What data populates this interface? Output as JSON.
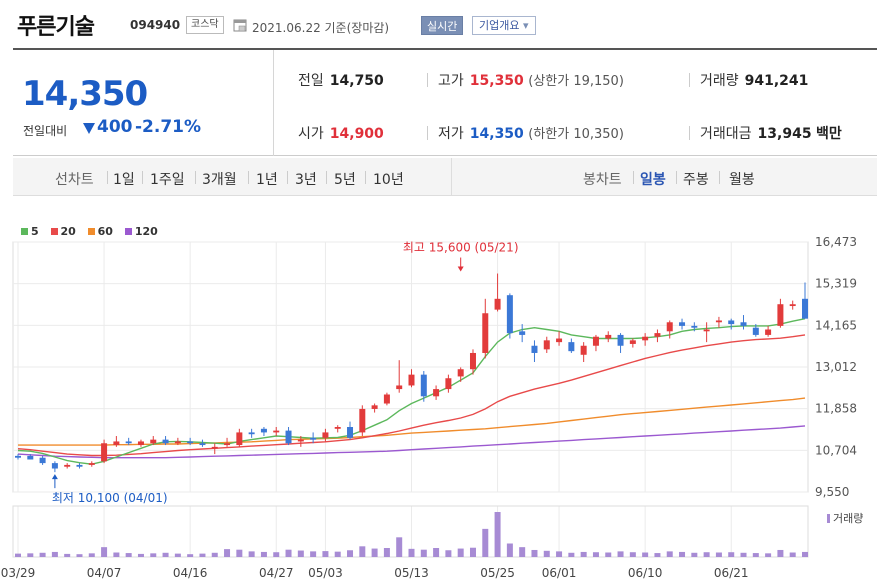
{
  "header": {
    "name": "푸른기술",
    "code": "094940",
    "market": "코스닥",
    "date_text": "2021.06.22 기준(장마감)",
    "realtime_label": "실시간",
    "overview_label": "기업개요",
    "overview_arrow": "▾"
  },
  "summary": {
    "current_price": "14,350",
    "prev_diff_label": "전일대비",
    "diff_value": "400",
    "diff_pct": "-2.71%",
    "prev_label": "전일",
    "prev_value": "14,750",
    "high_label": "고가",
    "high_value": "15,350",
    "upper_limit": "(상한가 19,150)",
    "volume_label": "거래량",
    "volume_value": "941,241",
    "open_label": "시가",
    "open_value": "14,900",
    "low_label": "저가",
    "low_value": "14,350",
    "lower_limit": "(하한가 10,350)",
    "amount_label": "거래대금",
    "amount_value": "13,945",
    "amount_unit": "백만"
  },
  "period_bar": {
    "line_label": "선차트",
    "line_periods": [
      "1일",
      "1주일",
      "3개월",
      "1년",
      "3년",
      "5년",
      "10년"
    ],
    "candle_label": "봉차트",
    "candle_periods": [
      "일봉",
      "주봉",
      "월봉"
    ],
    "active_candle": "일봉"
  },
  "legend": [
    {
      "label": "5",
      "color": "#5cb85c"
    },
    {
      "label": "20",
      "color": "#e84a4a"
    },
    {
      "label": "60",
      "color": "#f08c2c"
    },
    {
      "label": "120",
      "color": "#9b59d0"
    }
  ],
  "colors": {
    "up": "#e0303a",
    "down": "#1c5cc4",
    "candle_up": "#e23b3b",
    "candle_down": "#3b78d6",
    "volume": "#a78bd4"
  },
  "chart_data": {
    "type": "candlestick",
    "y_ticks": [
      "16,473",
      "15,319",
      "14,165",
      "13,012",
      "11,858",
      "10,704",
      "9,550"
    ],
    "ylim": [
      9550,
      16473
    ],
    "x_ticks": [
      {
        "label": "03/29",
        "index": 0
      },
      {
        "label": "04/07",
        "index": 7
      },
      {
        "label": "04/16",
        "index": 14
      },
      {
        "label": "04/27",
        "index": 21
      },
      {
        "label": "05/03",
        "index": 25
      },
      {
        "label": "05/13",
        "index": 32
      },
      {
        "label": "05/25",
        "index": 39
      },
      {
        "label": "06/01",
        "index": 44
      },
      {
        "label": "06/10",
        "index": 51
      },
      {
        "label": "06/21",
        "index": 58
      }
    ],
    "high_annotation": {
      "text": "최고 15,600 (05/21)",
      "index": 36,
      "price": 15600
    },
    "low_annotation": {
      "text": "최저 10,100 (04/01)",
      "index": 3,
      "price": 10100
    },
    "volume_label": "거래량",
    "candles": [
      [
        10550,
        10600,
        10450,
        10500,
        120
      ],
      [
        10550,
        10600,
        10450,
        10450,
        130
      ],
      [
        10500,
        10550,
        10300,
        10350,
        150
      ],
      [
        10350,
        10400,
        10100,
        10200,
        180
      ],
      [
        10250,
        10350,
        10200,
        10300,
        110
      ],
      [
        10300,
        10350,
        10200,
        10250,
        100
      ],
      [
        10300,
        10400,
        10250,
        10350,
        130
      ],
      [
        10400,
        11000,
        10350,
        10900,
        350
      ],
      [
        10850,
        11100,
        10800,
        10950,
        160
      ],
      [
        10950,
        11050,
        10850,
        10900,
        140
      ],
      [
        10850,
        11000,
        10800,
        10950,
        110
      ],
      [
        10900,
        11100,
        10850,
        11000,
        130
      ],
      [
        11000,
        11100,
        10850,
        10900,
        150
      ],
      [
        10900,
        11050,
        10850,
        10950,
        120
      ],
      [
        10950,
        11050,
        10850,
        10900,
        100
      ],
      [
        10900,
        11000,
        10800,
        10850,
        120
      ],
      [
        10750,
        10900,
        10600,
        10800,
        150
      ],
      [
        10850,
        11050,
        10800,
        10900,
        280
      ],
      [
        10850,
        11300,
        10800,
        11200,
        260
      ],
      [
        11200,
        11300,
        11050,
        11150,
        200
      ],
      [
        11300,
        11350,
        11100,
        11200,
        180
      ],
      [
        11200,
        11350,
        11100,
        11250,
        170
      ],
      [
        11250,
        11350,
        10850,
        10900,
        260
      ],
      [
        10950,
        11100,
        10800,
        11000,
        230
      ],
      [
        11050,
        11200,
        10900,
        11000,
        200
      ],
      [
        11050,
        11300,
        10950,
        11200,
        210
      ],
      [
        11300,
        11400,
        11200,
        11350,
        190
      ],
      [
        11350,
        11500,
        11000,
        11050,
        240
      ],
      [
        11200,
        11950,
        11100,
        11850,
        380
      ],
      [
        11850,
        12000,
        11750,
        11950,
        300
      ],
      [
        12000,
        12300,
        11950,
        12250,
        320
      ],
      [
        12400,
        13200,
        12300,
        12500,
        700
      ],
      [
        12500,
        12950,
        12450,
        12800,
        290
      ],
      [
        12800,
        12900,
        12050,
        12200,
        260
      ],
      [
        12200,
        12500,
        12100,
        12400,
        320
      ],
      [
        12400,
        12800,
        12300,
        12700,
        240
      ],
      [
        12750,
        13000,
        12600,
        12950,
        300
      ],
      [
        12950,
        13500,
        12800,
        13400,
        330
      ],
      [
        13400,
        14900,
        13250,
        14500,
        1000
      ],
      [
        14600,
        15600,
        14550,
        14900,
        1600
      ],
      [
        15000,
        15050,
        13800,
        13950,
        480
      ],
      [
        14000,
        14200,
        13700,
        13900,
        350
      ],
      [
        13600,
        13750,
        13150,
        13400,
        250
      ],
      [
        13500,
        13850,
        13400,
        13750,
        220
      ],
      [
        13700,
        14000,
        13600,
        13800,
        200
      ],
      [
        13700,
        13800,
        13400,
        13450,
        150
      ],
      [
        13350,
        13700,
        13150,
        13600,
        180
      ],
      [
        13600,
        13900,
        13450,
        13850,
        170
      ],
      [
        13800,
        14000,
        13700,
        13900,
        160
      ],
      [
        13900,
        13950,
        13400,
        13600,
        200
      ],
      [
        13650,
        13800,
        13550,
        13750,
        170
      ],
      [
        13750,
        13950,
        13600,
        13850,
        160
      ],
      [
        13850,
        14050,
        13700,
        13950,
        140
      ],
      [
        14000,
        14300,
        13800,
        14250,
        200
      ],
      [
        14250,
        14350,
        14050,
        14150,
        180
      ],
      [
        14150,
        14250,
        14000,
        14100,
        150
      ],
      [
        14000,
        14250,
        13700,
        14050,
        170
      ],
      [
        14250,
        14400,
        14100,
        14300,
        160
      ],
      [
        14300,
        14350,
        14050,
        14200,
        170
      ],
      [
        14250,
        14450,
        14050,
        14150,
        150
      ],
      [
        14100,
        14200,
        13850,
        13900,
        140
      ],
      [
        13900,
        14150,
        13850,
        14050,
        130
      ],
      [
        14150,
        14900,
        14100,
        14750,
        250
      ],
      [
        14700,
        14850,
        14600,
        14750,
        160
      ],
      [
        14900,
        15350,
        14350,
        14350,
        180
      ]
    ],
    "ma5": [
      10700,
      10680,
      10620,
      10520,
      10420,
      10360,
      10320,
      10400,
      10520,
      10640,
      10760,
      10880,
      10940,
      10950,
      10940,
      10920,
      10900,
      10880,
      10950,
      11000,
      11050,
      11100,
      11080,
      11060,
      11040,
      11050,
      11060,
      11120,
      11250,
      11400,
      11550,
      11800,
      12000,
      12150,
      12300,
      12450,
      12650,
      12850,
      13300,
      13700,
      13950,
      14050,
      14100,
      14050,
      14000,
      13900,
      13850,
      13800,
      13800,
      13800,
      13800,
      13820,
      13850,
      13900,
      14000,
      14050,
      14080,
      14100,
      14130,
      14150,
      14150,
      14150,
      14200,
      14280,
      14350
    ],
    "ma20": [
      10750,
      10720,
      10680,
      10640,
      10600,
      10580,
      10560,
      10560,
      10570,
      10590,
      10610,
      10640,
      10670,
      10700,
      10720,
      10740,
      10760,
      10780,
      10800,
      10820,
      10840,
      10860,
      10880,
      10900,
      10920,
      10940,
      10970,
      11000,
      11050,
      11110,
      11170,
      11240,
      11320,
      11400,
      11470,
      11530,
      11600,
      11700,
      11850,
      12050,
      12200,
      12300,
      12400,
      12480,
      12560,
      12650,
      12750,
      12850,
      12950,
      13050,
      13150,
      13250,
      13330,
      13410,
      13480,
      13540,
      13600,
      13650,
      13700,
      13740,
      13770,
      13790,
      13810,
      13850,
      13900
    ],
    "ma60": [
      10850,
      10850,
      10850,
      10850,
      10850,
      10850,
      10850,
      10850,
      10860,
      10860,
      10870,
      10870,
      10880,
      10880,
      10890,
      10900,
      10910,
      10920,
      10930,
      10940,
      10960,
      10980,
      11000,
      11010,
      11020,
      11030,
      11040,
      11060,
      11080,
      11100,
      11120,
      11150,
      11180,
      11200,
      11220,
      11240,
      11260,
      11280,
      11300,
      11330,
      11360,
      11390,
      11420,
      11450,
      11490,
      11530,
      11570,
      11610,
      11650,
      11690,
      11720,
      11750,
      11780,
      11810,
      11840,
      11870,
      11900,
      11930,
      11960,
      11990,
      12020,
      12050,
      12080,
      12110,
      12150
    ],
    "ma120": [
      10600,
      10580,
      10560,
      10540,
      10530,
      10520,
      10510,
      10500,
      10500,
      10500,
      10500,
      10500,
      10500,
      10510,
      10520,
      10530,
      10540,
      10550,
      10560,
      10570,
      10580,
      10590,
      10600,
      10610,
      10620,
      10630,
      10640,
      10650,
      10660,
      10670,
      10680,
      10700,
      10720,
      10740,
      10760,
      10780,
      10800,
      10820,
      10840,
      10860,
      10880,
      10900,
      10920,
      10940,
      10960,
      10980,
      11000,
      11020,
      11040,
      11060,
      11080,
      11100,
      11120,
      11140,
      11160,
      11180,
      11200,
      11220,
      11240,
      11260,
      11280,
      11300,
      11320,
      11350,
      11380
    ]
  }
}
